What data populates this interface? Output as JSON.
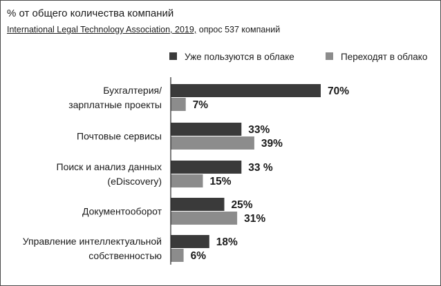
{
  "header": {
    "title": "% от общего количества компаний",
    "source": "International Legal Technology Association, 2019,",
    "survey": " опрос 537 компаний"
  },
  "colors": {
    "series_1": "#3a3a3a",
    "series_2": "#8c8c8c",
    "axis": "#222222",
    "frame": "#4a4a4a"
  },
  "chart_data": {
    "type": "bar",
    "orientation": "horizontal",
    "title": "% от общего количества компаний",
    "subtitle": "International Legal Technology Association, 2019, опрос 537 компаний",
    "categories": [
      [
        "Бухгалтерия/",
        "зарплатные проекты"
      ],
      [
        "Почтовые сервисы"
      ],
      [
        "Поиск и анализ данных",
        "(eDiscovery)"
      ],
      [
        "Документооборот"
      ],
      [
        "Управление интеллектуальной",
        "собственностью"
      ]
    ],
    "series": [
      {
        "name": "Уже пользуются в облаке",
        "values": [
          70,
          33,
          33,
          25,
          18
        ],
        "labels": [
          "70%",
          "33%",
          "33 %",
          "25%",
          "18%"
        ],
        "color": "#3a3a3a"
      },
      {
        "name": "Переходят в облако",
        "values": [
          7,
          39,
          15,
          31,
          6
        ],
        "labels": [
          "7%",
          "39%",
          "15%",
          "31%",
          "6%"
        ],
        "color": "#8c8c8c"
      }
    ],
    "xlim": [
      0,
      70
    ],
    "grid": false,
    "legend": "top-right"
  }
}
